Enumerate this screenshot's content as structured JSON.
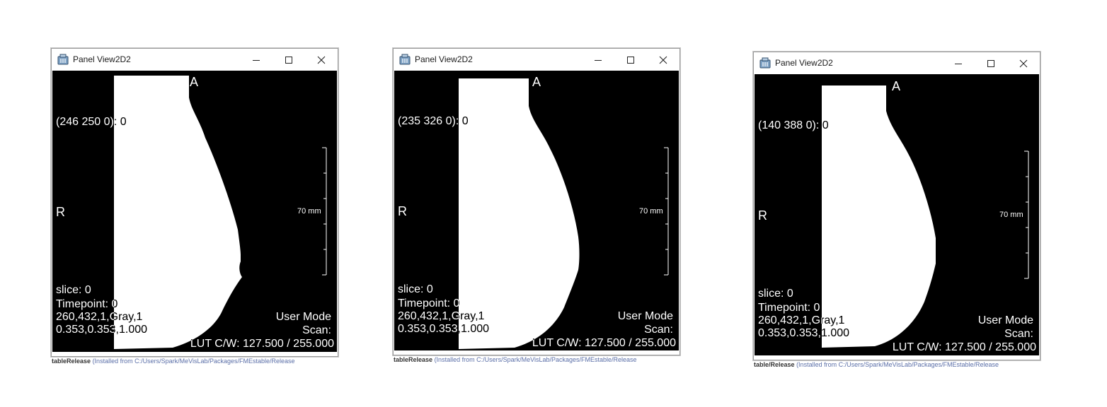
{
  "windows": [
    {
      "title": "Panel View2D2",
      "coord": "(246 250 0): 0",
      "orient_top": "A",
      "orient_left": "R",
      "ruler": "70 mm",
      "slice": "slice:  0",
      "timepoint": "Timepoint: 0",
      "image_info": "260,432,1,Gray,1",
      "spacing": "0.353,0.353,1.000",
      "user_mode": "User Mode",
      "scan": "Scan:",
      "lut": "LUT C/W: 127.500 / 255.000",
      "status_a": "tableRelease",
      "status_b": "(Installed from C:/Users/Spark/MeVisLab/Packages/FMEstable/Release"
    },
    {
      "title": "Panel View2D2",
      "coord": "(235 326 0): 0",
      "orient_top": "A",
      "orient_left": "R",
      "ruler": "70 mm",
      "slice": "slice:  0",
      "timepoint": "Timepoint: 0",
      "image_info": "260,432,1,Gray,1",
      "spacing": "0.353,0.353,1.000",
      "user_mode": "User Mode",
      "scan": "Scan:",
      "lut": "LUT C/W: 127.500 / 255.000",
      "status_a": "tableRelease",
      "status_b": "(Installed from C:/Users/Spark/MeVisLab/Packages/FMEstable/Release"
    },
    {
      "title": "Panel View2D2",
      "coord": "(140 388 0): 0",
      "orient_top": "A",
      "orient_left": "R",
      "ruler": "70 mm",
      "slice": "slice:  0",
      "timepoint": "Timepoint: 0",
      "image_info": "260,432,1,Gray,1",
      "spacing": "0.353,0.353,1.000",
      "user_mode": "User Mode",
      "scan": "Scan:",
      "lut": "LUT C/W: 127.500 / 255.000",
      "status_a": "table/Release",
      "status_b": "(Installed from C:/Users/Spark/MeVisLab/Packages/FMEstable/Release"
    }
  ],
  "icons": {
    "app": "app-icon",
    "minimize": "minimize-icon",
    "maximize": "maximize-icon",
    "close": "close-icon"
  },
  "colors": {
    "viewport": "#000000",
    "mask": "#ffffff",
    "overlay_text": "#ffffff"
  }
}
